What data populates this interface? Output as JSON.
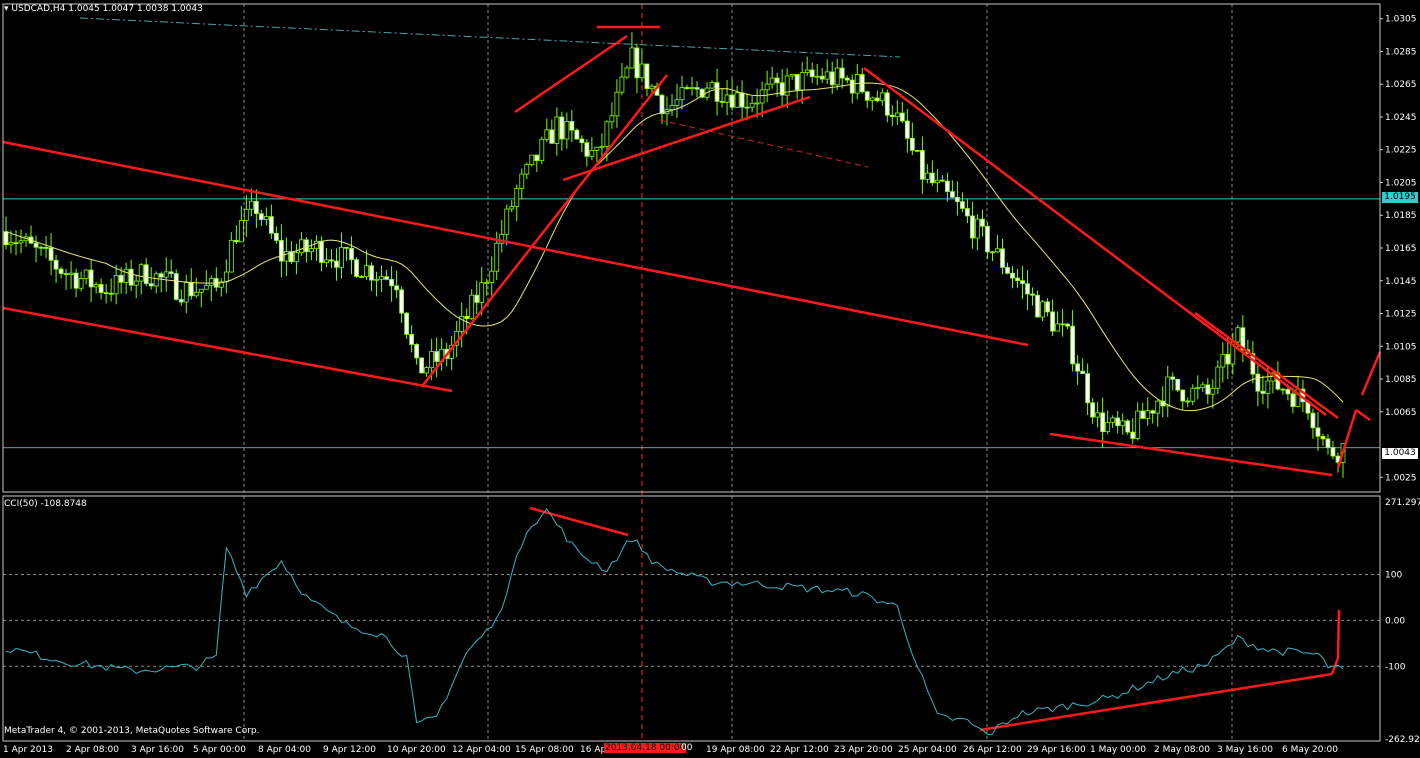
{
  "chart_data": [
    {
      "type": "candlestick",
      "symbol_label": "USDCAD,H4",
      "ohlc_header": "1.0045 1.0047 1.0038 1.0043",
      "colors": {
        "background": "#000000",
        "candle": "#7cfc00",
        "ma": "#e8e870",
        "drawn_lines": "#ff1a1a",
        "hline": "#33cccc",
        "grid": "#9a9a9a"
      },
      "y_ticks": [
        "1.0305",
        "1.0285",
        "1.0265",
        "1.0245",
        "1.0225",
        "1.0205",
        "1.0185",
        "1.0165",
        "1.0145",
        "1.0125",
        "1.0105",
        "1.0085",
        "1.0065",
        "1.0025"
      ],
      "ylim": [
        1.0016,
        1.0314
      ],
      "hline_label": "1.0195",
      "hline_value": 1.0195,
      "current_price_label": "1.0043",
      "current_price": 1.0043,
      "x_tick_labels": [
        "1 Apr 2013",
        "2 Apr 08:00",
        "3 Apr 16:00",
        "5 Apr 00:00",
        "8 Apr 04:00",
        "9 Apr 12:00",
        "10 Apr 20:00",
        "12 Apr 04:00",
        "15 Apr 08:00",
        "16 Ap",
        "19 Apr 08:00",
        "22 Apr 12:00",
        "23 Apr 20:00",
        "25 Apr 04:00",
        "26 Apr 12:00",
        "29 Apr 16:00",
        "1 May 00:00",
        "2 May 08:00",
        "3 May 16:00",
        "6 May 20:00"
      ],
      "x_marker_label": "2013.04.18 00:00",
      "x_marker_suffix": "00",
      "anchors": [
        [
          0,
          1.0175
        ],
        [
          12,
          1.015
        ],
        [
          20,
          1.014
        ],
        [
          28,
          1.015
        ],
        [
          35,
          1.014
        ],
        [
          42,
          1.014
        ],
        [
          46,
          1.0175
        ],
        [
          50,
          1.019
        ],
        [
          55,
          1.016
        ],
        [
          62,
          1.0165
        ],
        [
          70,
          1.0155
        ],
        [
          78,
          1.0145
        ],
        [
          82,
          1.009
        ],
        [
          88,
          1.01
        ],
        [
          95,
          1.014
        ],
        [
          102,
          1.02
        ],
        [
          110,
          1.024
        ],
        [
          118,
          1.022
        ],
        [
          125,
          1.028
        ],
        [
          132,
          1.025
        ],
        [
          140,
          1.0265
        ],
        [
          148,
          1.0255
        ],
        [
          156,
          1.0265
        ],
        [
          163,
          1.027
        ],
        [
          170,
          1.0265
        ],
        [
          177,
          1.025
        ],
        [
          183,
          1.021
        ],
        [
          190,
          1.019
        ],
        [
          198,
          1.016
        ],
        [
          206,
          1.013
        ],
        [
          212,
          1.011
        ],
        [
          218,
          1.006
        ],
        [
          224,
          1.005
        ],
        [
          232,
          1.008
        ],
        [
          240,
          1.0075
        ],
        [
          246,
          1.011
        ],
        [
          250,
          1.0085
        ],
        [
          255,
          1.008
        ],
        [
          260,
          1.007
        ],
        [
          264,
          1.004
        ],
        [
          267,
          1.0043
        ]
      ],
      "candle_count": 268
    },
    {
      "type": "line",
      "indicator_label": "CCI(50) -108.8748",
      "y_ticks": [
        "271.2976",
        "100",
        "0.00",
        "-100",
        "-262.920"
      ],
      "ylim": [
        -262.92,
        271.2976
      ],
      "series_color": "#36b7c4",
      "anchors": [
        [
          0,
          -60
        ],
        [
          12,
          -90
        ],
        [
          25,
          -110
        ],
        [
          38,
          -100
        ],
        [
          42,
          -80
        ],
        [
          44,
          160
        ],
        [
          48,
          60
        ],
        [
          55,
          130
        ],
        [
          60,
          50
        ],
        [
          68,
          -10
        ],
        [
          75,
          -30
        ],
        [
          80,
          -80
        ],
        [
          82,
          -230
        ],
        [
          86,
          -210
        ],
        [
          92,
          -70
        ],
        [
          98,
          0
        ],
        [
          104,
          200
        ],
        [
          108,
          240
        ],
        [
          114,
          150
        ],
        [
          120,
          110
        ],
        [
          125,
          180
        ],
        [
          130,
          120
        ],
        [
          140,
          85
        ],
        [
          150,
          80
        ],
        [
          160,
          70
        ],
        [
          170,
          60
        ],
        [
          178,
          30
        ],
        [
          182,
          -100
        ],
        [
          186,
          -210
        ],
        [
          192,
          -220
        ],
        [
          196,
          -250
        ],
        [
          202,
          -205
        ],
        [
          210,
          -190
        ],
        [
          220,
          -170
        ],
        [
          232,
          -120
        ],
        [
          240,
          -95
        ],
        [
          246,
          -40
        ],
        [
          252,
          -65
        ],
        [
          258,
          -70
        ],
        [
          262,
          -75
        ],
        [
          264,
          -100
        ],
        [
          267,
          -109
        ]
      ],
      "copyright": "MetaTrader 4, © 2001-2013, MetaQuotes Software Corp."
    }
  ]
}
